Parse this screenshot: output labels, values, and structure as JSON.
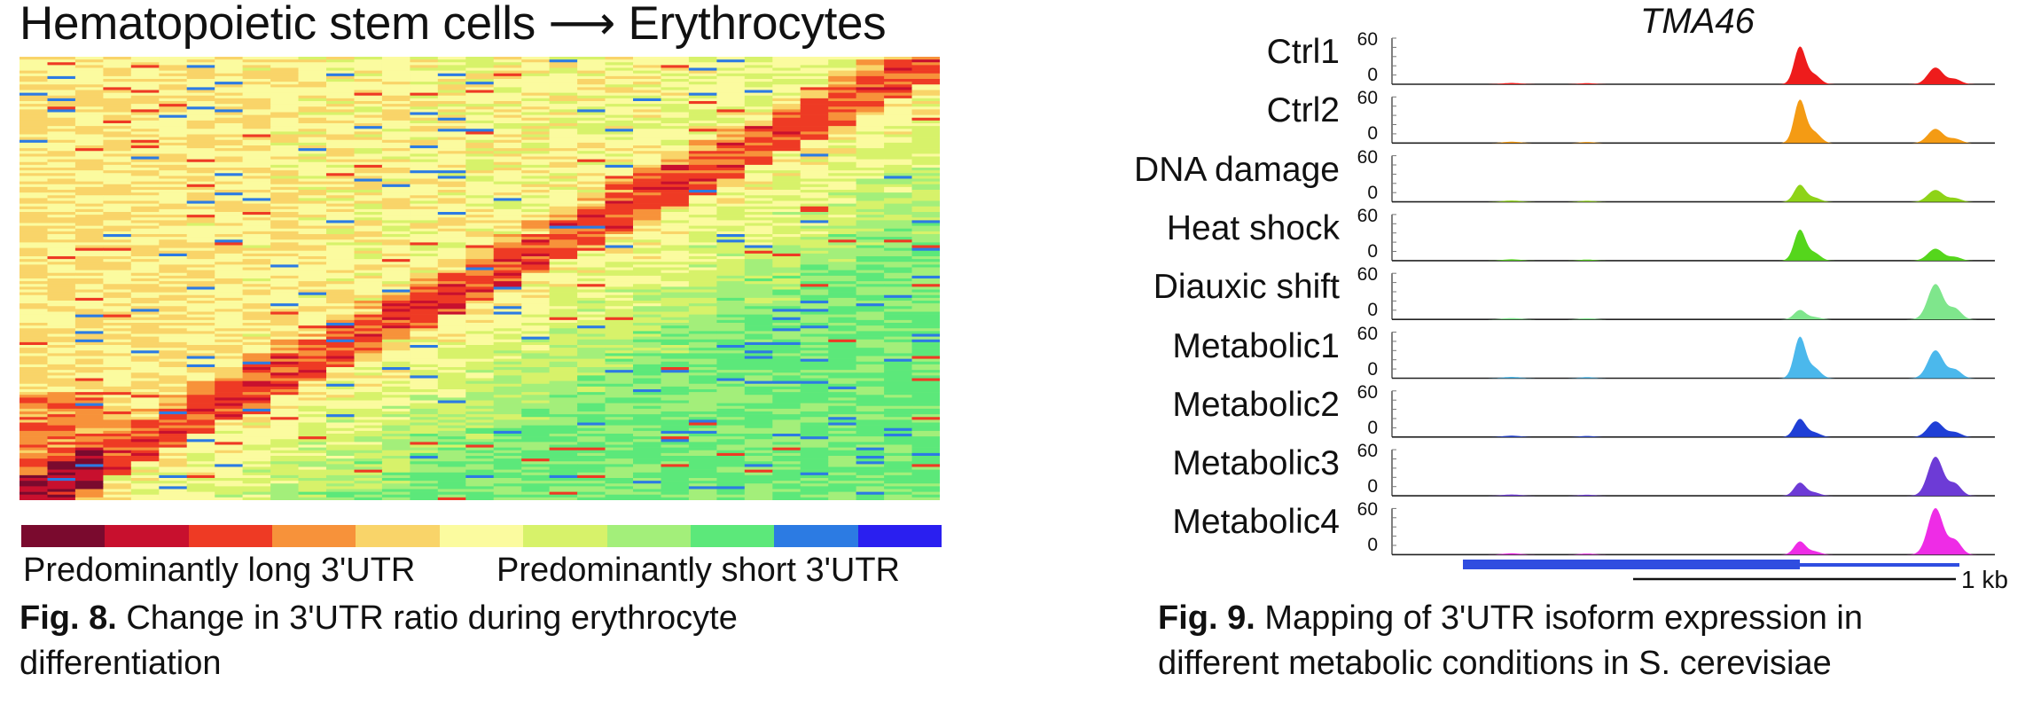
{
  "figure8": {
    "title": "Hematopoietic stem cells ⟶ Erythrocytes",
    "legend_long": "Predominantly long 3'UTR",
    "legend_short": "Predominantly short 3'UTR",
    "caption_label": "Fig. 8.",
    "caption_line1": " Change in 3'UTR ratio during erythrocyte",
    "caption_line2": "differentiation",
    "colorbar_colors": [
      "#7a0a2e",
      "#c8102e",
      "#ee3a24",
      "#f7923a",
      "#f9d469",
      "#fbfb9f",
      "#d7f26a",
      "#a3ef7a",
      "#5ce87a",
      "#2c7be3",
      "#2a1ff0"
    ]
  },
  "figure9": {
    "gene": "TMA46",
    "tracks": [
      {
        "label": "Ctrl1",
        "color": "#ee1c1c",
        "peak1": 1.0,
        "peak2": 0.45
      },
      {
        "label": "Ctrl2",
        "color": "#f49b14",
        "peak1": 1.15,
        "peak2": 0.38
      },
      {
        "label": "DNA damage",
        "color": "#8ed317",
        "peak1": 0.45,
        "peak2": 0.32
      },
      {
        "label": "Heat shock",
        "color": "#55d61c",
        "peak1": 0.82,
        "peak2": 0.32
      },
      {
        "label": "Diauxic shift",
        "color": "#7fe68c",
        "peak1": 0.25,
        "peak2": 0.95
      },
      {
        "label": "Metabolic1",
        "color": "#4bb8ec",
        "peak1": 1.1,
        "peak2": 0.75
      },
      {
        "label": "Metabolic2",
        "color": "#1f3fd6",
        "peak1": 0.48,
        "peak2": 0.42
      },
      {
        "label": "Metabolic3",
        "color": "#6d3bd6",
        "peak1": 0.35,
        "peak2": 1.05
      },
      {
        "label": "Metabolic4",
        "color": "#ee2ce6",
        "peak1": 0.35,
        "peak2": 1.25
      }
    ],
    "axis_max": "60",
    "axis_min": "0",
    "scale_label": "1 kb",
    "caption_label": "Fig. 9.",
    "caption_line1": " Mapping of 3'UTR isoform expression in",
    "caption_line2": "different metabolic conditions in S. cerevisiae"
  }
}
